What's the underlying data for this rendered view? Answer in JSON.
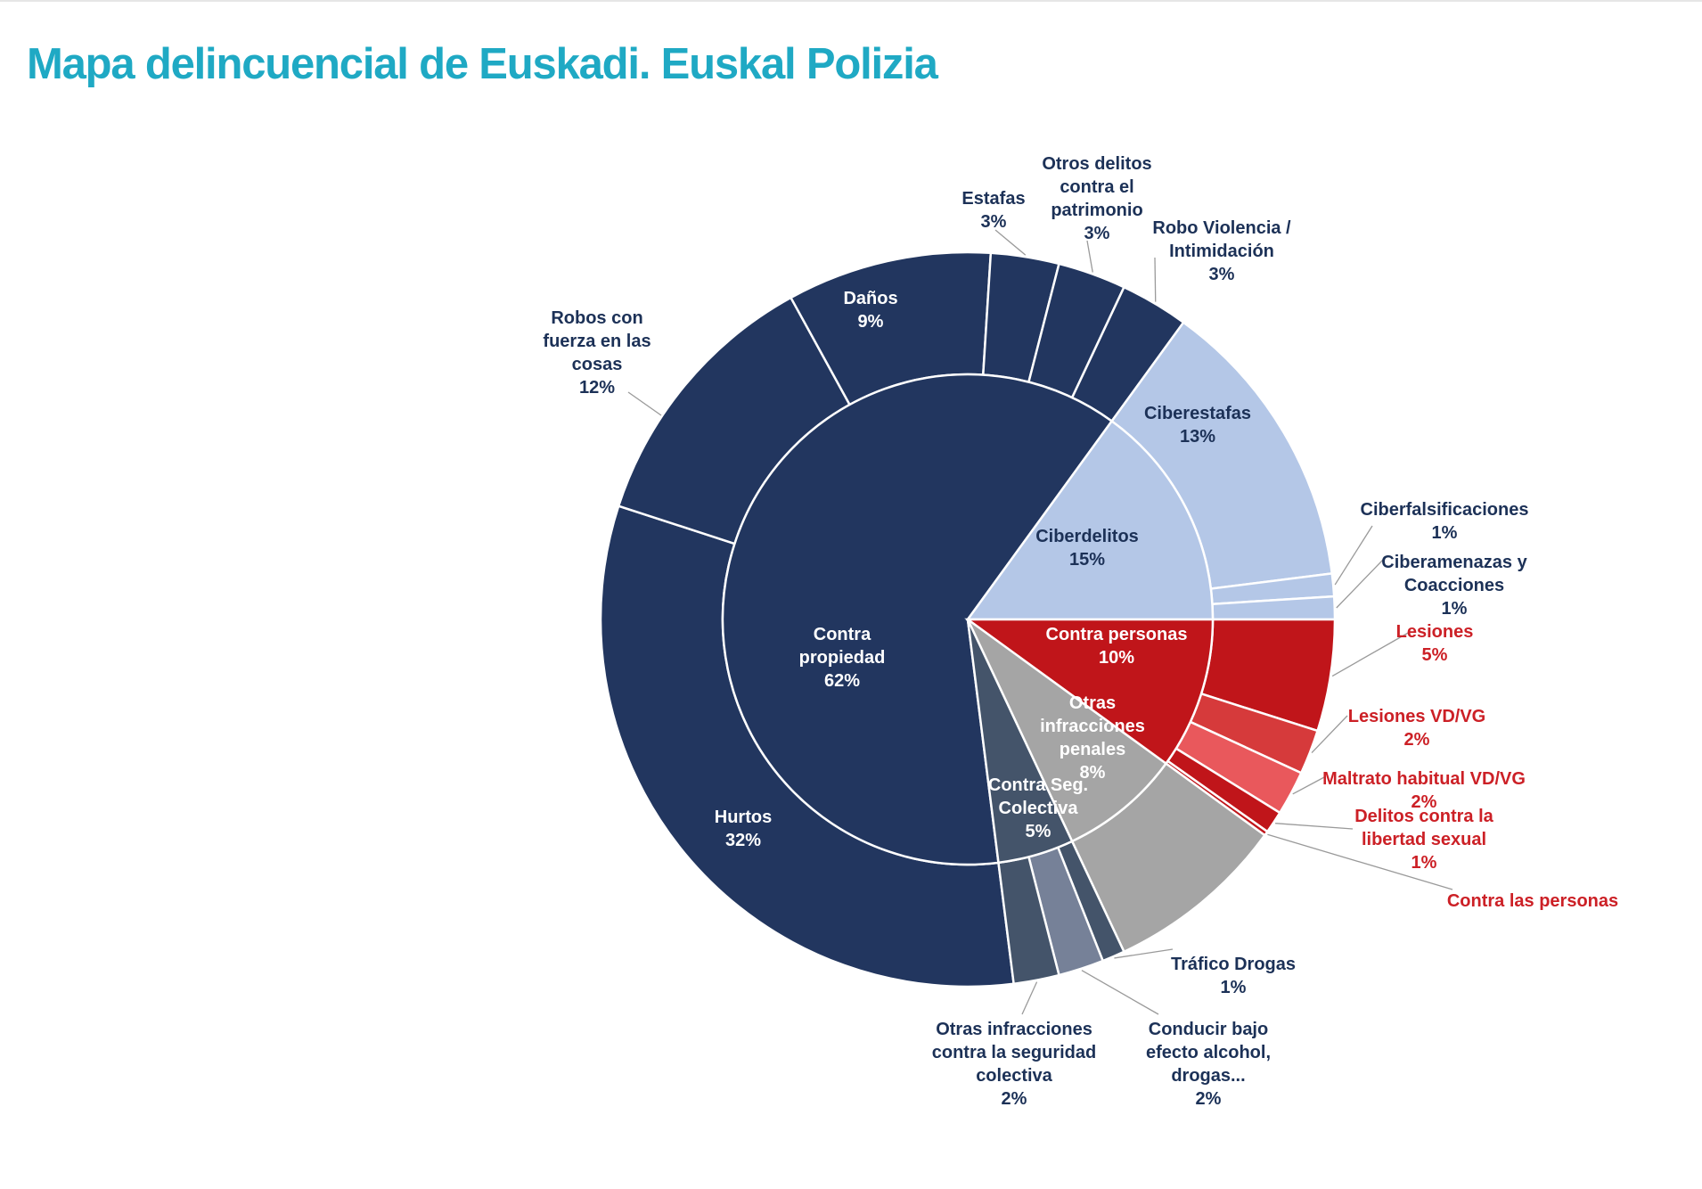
{
  "title": "Mapa delincuencial de Euskadi. Euskal Polizia",
  "colors": {
    "title": "#1fa9c4",
    "navy": "#22365f",
    "navy_label": "#1c3157",
    "light_blue": "#b4c7e7",
    "red": "#c0151a",
    "red_label": "#cc2026",
    "red_mid": "#d63a3b",
    "red_light": "#e9585c",
    "grey": "#a5a5a5",
    "slate": "#44546a",
    "slate_light": "#768198",
    "white": "#ffffff"
  },
  "chart_data": {
    "type": "sunburst",
    "title": "Mapa delincuencial de Euskadi. Euskal Polizia",
    "unit": "%",
    "inner": [
      {
        "name": "Contra propiedad",
        "value": 62,
        "label": "Contra propiedad",
        "pct": "62%",
        "color": "#22365f"
      },
      {
        "name": "Ciberdelitos",
        "value": 15,
        "label": "Ciberdelitos",
        "pct": "15%",
        "color": "#b4c7e7"
      },
      {
        "name": "Contra personas",
        "value": 10,
        "label": "Contra personas",
        "pct": "10%",
        "color": "#c0151a"
      },
      {
        "name": "Otras infracciones penales",
        "value": 8,
        "label": "Otras infracciones penales",
        "pct": "8%",
        "color": "#a5a5a5"
      },
      {
        "name": "Contra Seg. Colectiva",
        "value": 5,
        "label": "Contra Seg. Colectiva",
        "pct": "5%",
        "color": "#44546a"
      }
    ],
    "outer": [
      {
        "name": "Hurtos",
        "value": 32,
        "parent": "Contra propiedad",
        "label": "Hurtos",
        "pct": "32%",
        "color": "#22365f"
      },
      {
        "name": "Robos con fuerza en las cosas",
        "value": 12,
        "parent": "Contra propiedad",
        "label": "Robos con fuerza en las cosas",
        "pct": "12%",
        "color": "#22365f"
      },
      {
        "name": "Daños",
        "value": 9,
        "parent": "Contra propiedad",
        "label": "Daños",
        "pct": "9%",
        "color": "#22365f"
      },
      {
        "name": "Estafas",
        "value": 3,
        "parent": "Contra propiedad",
        "label": "Estafas",
        "pct": "3%",
        "color": "#22365f"
      },
      {
        "name": "Otros delitos contra el patrimonio",
        "value": 3,
        "parent": "Contra propiedad",
        "label": "Otros delitos contra el patrimonio",
        "pct": "3%",
        "color": "#22365f"
      },
      {
        "name": "Robo Violencia / Intimidación",
        "value": 3,
        "parent": "Contra propiedad",
        "label": "Robo Violencia / Intimidación",
        "pct": "3%",
        "color": "#22365f"
      },
      {
        "name": "Ciberestafas",
        "value": 13,
        "parent": "Ciberdelitos",
        "label": "Ciberestafas",
        "pct": "13%",
        "color": "#b4c7e7"
      },
      {
        "name": "Ciberfalsificaciones",
        "value": 1,
        "parent": "Ciberdelitos",
        "label": "Ciberfalsificaciones",
        "pct": "1%",
        "color": "#b4c7e7"
      },
      {
        "name": "Ciberamenazas y Coacciones",
        "value": 1,
        "parent": "Ciberdelitos",
        "label": "Ciberamenazas y Coacciones",
        "pct": "1%",
        "color": "#b4c7e7"
      },
      {
        "name": "Lesiones",
        "value": 5,
        "parent": "Contra personas",
        "label": "Lesiones",
        "pct": "5%",
        "color": "#c0151a"
      },
      {
        "name": "Lesiones VD/VG",
        "value": 2,
        "parent": "Contra personas",
        "label": "Lesiones VD/VG",
        "pct": "2%",
        "color": "#d63a3b"
      },
      {
        "name": "Maltrato habitual VD/VG",
        "value": 2,
        "parent": "Contra personas",
        "label": "Maltrato habitual VD/VG",
        "pct": "2%",
        "color": "#e9585c"
      },
      {
        "name": "Delitos contra la libertad sexual",
        "value": 1,
        "parent": "Contra personas",
        "label": "Delitos contra la libertad sexual",
        "pct": "1%",
        "color": "#c0151a"
      },
      {
        "name": "Contra las personas",
        "value": 0.2,
        "parent": "Contra personas",
        "label": "Contra las personas",
        "pct": "",
        "color": "#c0151a"
      },
      {
        "name": "Otras infracciones penales",
        "value": 8,
        "parent": "Otras infracciones penales",
        "label": "",
        "pct": "",
        "color": "#a5a5a5"
      },
      {
        "name": "Tráfico Drogas",
        "value": 1,
        "parent": "Contra Seg. Colectiva",
        "label": "Tráfico Drogas",
        "pct": "1%",
        "color": "#44546a"
      },
      {
        "name": "Conducir bajo efecto alcohol, drogas...",
        "value": 2,
        "parent": "Contra Seg. Colectiva",
        "label": "Conducir bajo efecto alcohol, drogas...",
        "pct": "2%",
        "color": "#768198"
      },
      {
        "name": "Otras infracciones contra la seguridad colectiva",
        "value": 2,
        "parent": "Contra Seg. Colectiva",
        "label": "Otras infracciones contra la seguridad colectiva",
        "pct": "2%",
        "color": "#44546a"
      }
    ]
  }
}
